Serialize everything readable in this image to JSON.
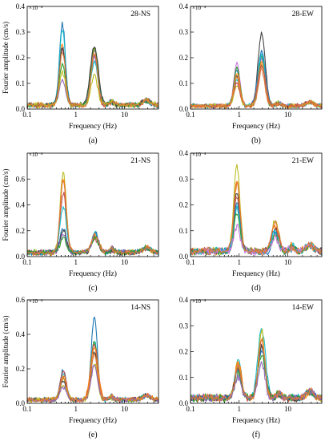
{
  "chart_data": [
    {
      "panel_label": "(a)",
      "title": "28-NS",
      "type": "line",
      "xlabel": "Frequency (Hz)",
      "ylabel": "Fourier amplitude (cm/s)",
      "x_scale": "log",
      "xlim": [
        0.1,
        50
      ],
      "ylim": [
        0,
        0.4
      ],
      "y_multiplier": "×10⁻⁴",
      "x_ticks": [
        {
          "v": 0.1,
          "label": "0.1"
        },
        {
          "v": 1,
          "label": "1"
        },
        {
          "v": 10,
          "label": "10"
        }
      ],
      "y_ticks": [
        {
          "v": 0,
          "label": "0.0"
        },
        {
          "v": 0.1,
          "label": "0.1"
        },
        {
          "v": 0.2,
          "label": "0.2"
        },
        {
          "v": 0.3,
          "label": "0.3"
        },
        {
          "v": 0.4,
          "label": "0.4"
        }
      ],
      "peaks": [
        0.53,
        2.4
      ],
      "base": 0.015,
      "series": [
        {
          "color": "#1f77b4",
          "p1": 0.315,
          "p2": 0.21
        },
        {
          "color": "#ff7f0e",
          "p1": 0.24,
          "p2": 0.22
        },
        {
          "color": "#c0504d",
          "p1": 0.22,
          "p2": 0.19
        },
        {
          "color": "#9467bd",
          "p1": 0.1,
          "p2": 0.19
        },
        {
          "color": "#17becf",
          "p1": 0.3,
          "p2": 0.17
        },
        {
          "color": "#2ca02c",
          "p1": 0.16,
          "p2": 0.22
        },
        {
          "color": "#444444",
          "p1": 0.23,
          "p2": 0.23
        },
        {
          "color": "#bcbd22",
          "p1": 0.13,
          "p2": 0.12
        },
        {
          "color": "#e07b39",
          "p1": 0.21,
          "p2": 0.2
        }
      ]
    },
    {
      "panel_label": "(b)",
      "title": "28-EW",
      "type": "line",
      "xlabel": "Frequency (Hz)",
      "ylabel": "",
      "x_scale": "log",
      "xlim": [
        0.1,
        50
      ],
      "ylim": [
        0,
        0.4
      ],
      "y_multiplier": "×10⁻⁴",
      "x_ticks": [
        {
          "v": 0.1,
          "label": "0.1"
        },
        {
          "v": 1,
          "label": "1"
        },
        {
          "v": 10,
          "label": "10"
        }
      ],
      "y_ticks": [
        {
          "v": 0,
          "label": "0.0"
        },
        {
          "v": 0.1,
          "label": "0.1"
        },
        {
          "v": 0.2,
          "label": "0.2"
        },
        {
          "v": 0.3,
          "label": "0.3"
        },
        {
          "v": 0.4,
          "label": "0.4"
        }
      ],
      "peaks": [
        0.9,
        2.9
      ],
      "base": 0.012,
      "series": [
        {
          "color": "#444444",
          "p1": 0.12,
          "p2": 0.28
        },
        {
          "color": "#1f77b4",
          "p1": 0.14,
          "p2": 0.21
        },
        {
          "color": "#c879e0",
          "p1": 0.17,
          "p2": 0.18
        },
        {
          "color": "#2ca02c",
          "p1": 0.15,
          "p2": 0.19
        },
        {
          "color": "#17becf",
          "p1": 0.1,
          "p2": 0.2
        },
        {
          "color": "#ff7f0e",
          "p1": 0.13,
          "p2": 0.17
        },
        {
          "color": "#bcbd22",
          "p1": 0.08,
          "p2": 0.16
        },
        {
          "color": "#c0504d",
          "p1": 0.09,
          "p2": 0.15
        },
        {
          "color": "#e07b39",
          "p1": 0.11,
          "p2": 0.14
        }
      ]
    },
    {
      "panel_label": "(c)",
      "title": "21-NS",
      "type": "line",
      "xlabel": "Frequency (Hz)",
      "ylabel": "Fourier amplitude (cm/s)",
      "x_scale": "log",
      "xlim": [
        0.1,
        50
      ],
      "ylim": [
        0,
        0.8
      ],
      "y_multiplier": "×10⁻⁴",
      "x_ticks": [
        {
          "v": 0.1,
          "label": "0.1"
        },
        {
          "v": 1,
          "label": "1"
        },
        {
          "v": 10,
          "label": "10"
        }
      ],
      "y_ticks": [
        {
          "v": 0,
          "label": "0.0"
        },
        {
          "v": 0.2,
          "label": "0.2"
        },
        {
          "v": 0.4,
          "label": "0.4"
        },
        {
          "v": 0.6,
          "label": "0.6"
        }
      ],
      "peaks": [
        0.55,
        2.5
      ],
      "base": 0.03,
      "series": [
        {
          "color": "#bcbd22",
          "p1": 0.62,
          "p2": 0.12
        },
        {
          "color": "#ff7f0e",
          "p1": 0.56,
          "p2": 0.14
        },
        {
          "color": "#c0504d",
          "p1": 0.46,
          "p2": 0.1
        },
        {
          "color": "#17becf",
          "p1": 0.37,
          "p2": 0.15
        },
        {
          "color": "#1f77b4",
          "p1": 0.19,
          "p2": 0.16
        },
        {
          "color": "#444444",
          "p1": 0.18,
          "p2": 0.13
        },
        {
          "color": "#9467bd",
          "p1": 0.14,
          "p2": 0.12
        },
        {
          "color": "#2ca02c",
          "p1": 0.12,
          "p2": 0.11
        },
        {
          "color": "#e07b39",
          "p1": 0.55,
          "p2": 0.13
        }
      ]
    },
    {
      "panel_label": "(d)",
      "title": "21-EW",
      "type": "line",
      "xlabel": "Frequency (Hz)",
      "ylabel": "",
      "x_scale": "log",
      "xlim": [
        0.1,
        50
      ],
      "ylim": [
        0,
        0.4
      ],
      "y_multiplier": "×10⁻⁴",
      "x_ticks": [
        {
          "v": 0.1,
          "label": "0.1"
        },
        {
          "v": 1,
          "label": "1"
        },
        {
          "v": 10,
          "label": "10"
        }
      ],
      "y_ticks": [
        {
          "v": 0,
          "label": "0.0"
        },
        {
          "v": 0.1,
          "label": "0.1"
        },
        {
          "v": 0.2,
          "label": "0.2"
        },
        {
          "v": 0.3,
          "label": "0.3"
        },
        {
          "v": 0.4,
          "label": "0.4"
        }
      ],
      "peaks": [
        0.9,
        5.5
      ],
      "base": 0.02,
      "series": [
        {
          "color": "#bcbd22",
          "p1": 0.33,
          "p2": 0.12
        },
        {
          "color": "#ff7f0e",
          "p1": 0.28,
          "p2": 0.1
        },
        {
          "color": "#444444",
          "p1": 0.23,
          "p2": 0.08
        },
        {
          "color": "#c0504d",
          "p1": 0.21,
          "p2": 0.09
        },
        {
          "color": "#1f77b4",
          "p1": 0.19,
          "p2": 0.07
        },
        {
          "color": "#17becf",
          "p1": 0.16,
          "p2": 0.08
        },
        {
          "color": "#2ca02c",
          "p1": 0.14,
          "p2": 0.06
        },
        {
          "color": "#c879e0",
          "p1": 0.1,
          "p2": 0.05
        },
        {
          "color": "#e07b39",
          "p1": 0.26,
          "p2": 0.11
        }
      ]
    },
    {
      "panel_label": "(e)",
      "title": "14-NS",
      "type": "line",
      "xlabel": "Frequency (Hz)",
      "ylabel": "Fourier amplitude (cm/s)",
      "x_scale": "log",
      "xlim": [
        0.1,
        50
      ],
      "ylim": [
        0,
        0.6
      ],
      "y_multiplier": "×10⁻⁴",
      "x_ticks": [
        {
          "v": 0.1,
          "label": "0.1"
        },
        {
          "v": 1,
          "label": "1"
        },
        {
          "v": 10,
          "label": "10"
        }
      ],
      "y_ticks": [
        {
          "v": 0,
          "label": "0.0"
        },
        {
          "v": 0.2,
          "label": "0.2"
        },
        {
          "v": 0.4,
          "label": "0.4"
        },
        {
          "v": 0.6,
          "label": "0.6"
        }
      ],
      "peaks": [
        0.55,
        2.4
      ],
      "base": 0.02,
      "series": [
        {
          "color": "#1f77b4",
          "p1": 0.17,
          "p2": 0.48
        },
        {
          "color": "#17becf",
          "p1": 0.15,
          "p2": 0.35
        },
        {
          "color": "#2ca02c",
          "p1": 0.12,
          "p2": 0.34
        },
        {
          "color": "#c0504d",
          "p1": 0.16,
          "p2": 0.32
        },
        {
          "color": "#ff7f0e",
          "p1": 0.13,
          "p2": 0.3
        },
        {
          "color": "#444444",
          "p1": 0.11,
          "p2": 0.28
        },
        {
          "color": "#bcbd22",
          "p1": 0.09,
          "p2": 0.21
        },
        {
          "color": "#9467bd",
          "p1": 0.07,
          "p2": 0.2
        },
        {
          "color": "#e07b39",
          "p1": 0.14,
          "p2": 0.26
        }
      ]
    },
    {
      "panel_label": "(f)",
      "title": "14-EW",
      "type": "line",
      "xlabel": "Frequency (Hz)",
      "ylabel": "",
      "x_scale": "log",
      "xlim": [
        0.1,
        50
      ],
      "ylim": [
        0,
        0.4
      ],
      "y_multiplier": "×10⁻⁴",
      "x_ticks": [
        {
          "v": 0.1,
          "label": "0.1"
        },
        {
          "v": 1,
          "label": "1"
        },
        {
          "v": 10,
          "label": "10"
        }
      ],
      "y_ticks": [
        {
          "v": 0,
          "label": "0.0"
        },
        {
          "v": 0.1,
          "label": "0.1"
        },
        {
          "v": 0.2,
          "label": "0.2"
        },
        {
          "v": 0.3,
          "label": "0.3"
        },
        {
          "v": 0.4,
          "label": "0.4"
        }
      ],
      "peaks": [
        0.95,
        2.9
      ],
      "base": 0.02,
      "series": [
        {
          "color": "#17becf",
          "p1": 0.15,
          "p2": 0.27
        },
        {
          "color": "#bcbd22",
          "p1": 0.13,
          "p2": 0.26
        },
        {
          "color": "#ff7f0e",
          "p1": 0.14,
          "p2": 0.23
        },
        {
          "color": "#c0504d",
          "p1": 0.12,
          "p2": 0.21
        },
        {
          "color": "#444444",
          "p1": 0.11,
          "p2": 0.2
        },
        {
          "color": "#1f77b4",
          "p1": 0.1,
          "p2": 0.18
        },
        {
          "color": "#2ca02c",
          "p1": 0.09,
          "p2": 0.16
        },
        {
          "color": "#9467bd",
          "p1": 0.08,
          "p2": 0.14
        },
        {
          "color": "#e07b39",
          "p1": 0.12,
          "p2": 0.22
        }
      ]
    }
  ]
}
